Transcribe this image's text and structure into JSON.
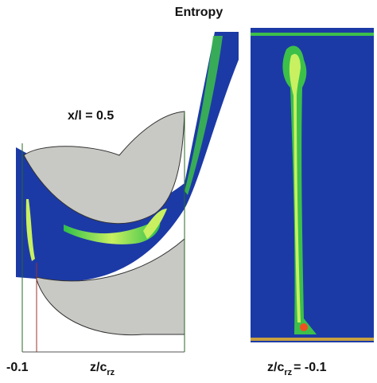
{
  "title": "Entropy",
  "annotation": "x/l = 0.5",
  "left_axis": {
    "tick_label": "-0.1",
    "label": {
      "base": "z/c",
      "sub": "rz"
    }
  },
  "right_caption": {
    "base": "z/c",
    "sub": "rz",
    "suffix": "= -0.1"
  }
}
